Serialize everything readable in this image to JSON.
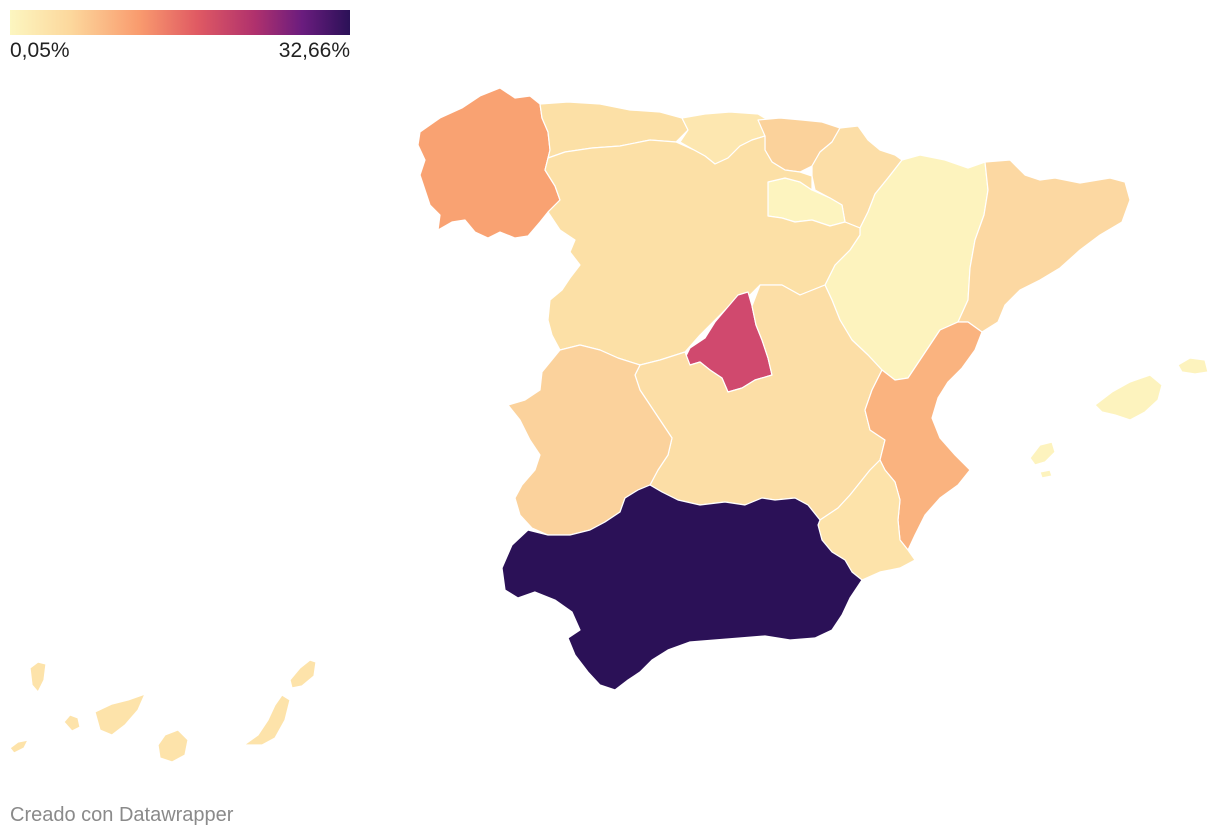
{
  "legend": {
    "min_label": "0,05%",
    "max_label": "32,66%",
    "colors": [
      "#fcf6c0",
      "#fcd79c",
      "#f99b6e",
      "#e05a63",
      "#b0316d",
      "#6a1c7e",
      "#2b1157"
    ]
  },
  "map": {
    "type": "choropleth",
    "scale_min": 0.05,
    "scale_max": 32.66,
    "regions": [
      {
        "name": "Galicia",
        "color": "#f9a272"
      },
      {
        "name": "Asturias",
        "color": "#fce0a6"
      },
      {
        "name": "Cantabria",
        "color": "#fde7b0"
      },
      {
        "name": "País Vasco",
        "color": "#fbd29b"
      },
      {
        "name": "Navarra",
        "color": "#fcdea7"
      },
      {
        "name": "La Rioja",
        "color": "#fdf4bf"
      },
      {
        "name": "Aragón",
        "color": "#fdf3be"
      },
      {
        "name": "Cataluña",
        "color": "#fcd8a2"
      },
      {
        "name": "Castilla y León",
        "color": "#fce0a6"
      },
      {
        "name": "Madrid",
        "color": "#d0496e"
      },
      {
        "name": "Castilla-La Mancha",
        "color": "#fcdea6"
      },
      {
        "name": "Extremadura",
        "color": "#fbd29c"
      },
      {
        "name": "Comunidad Valenciana",
        "color": "#fab37f"
      },
      {
        "name": "Región de Murcia",
        "color": "#fde3aa"
      },
      {
        "name": "Andalucía",
        "color": "#2b1157"
      },
      {
        "name": "Islas Baleares",
        "color": "#fdf3be"
      },
      {
        "name": "Canarias",
        "color": "#fde3aa"
      }
    ]
  },
  "footer": {
    "credit": "Creado con Datawrapper"
  }
}
